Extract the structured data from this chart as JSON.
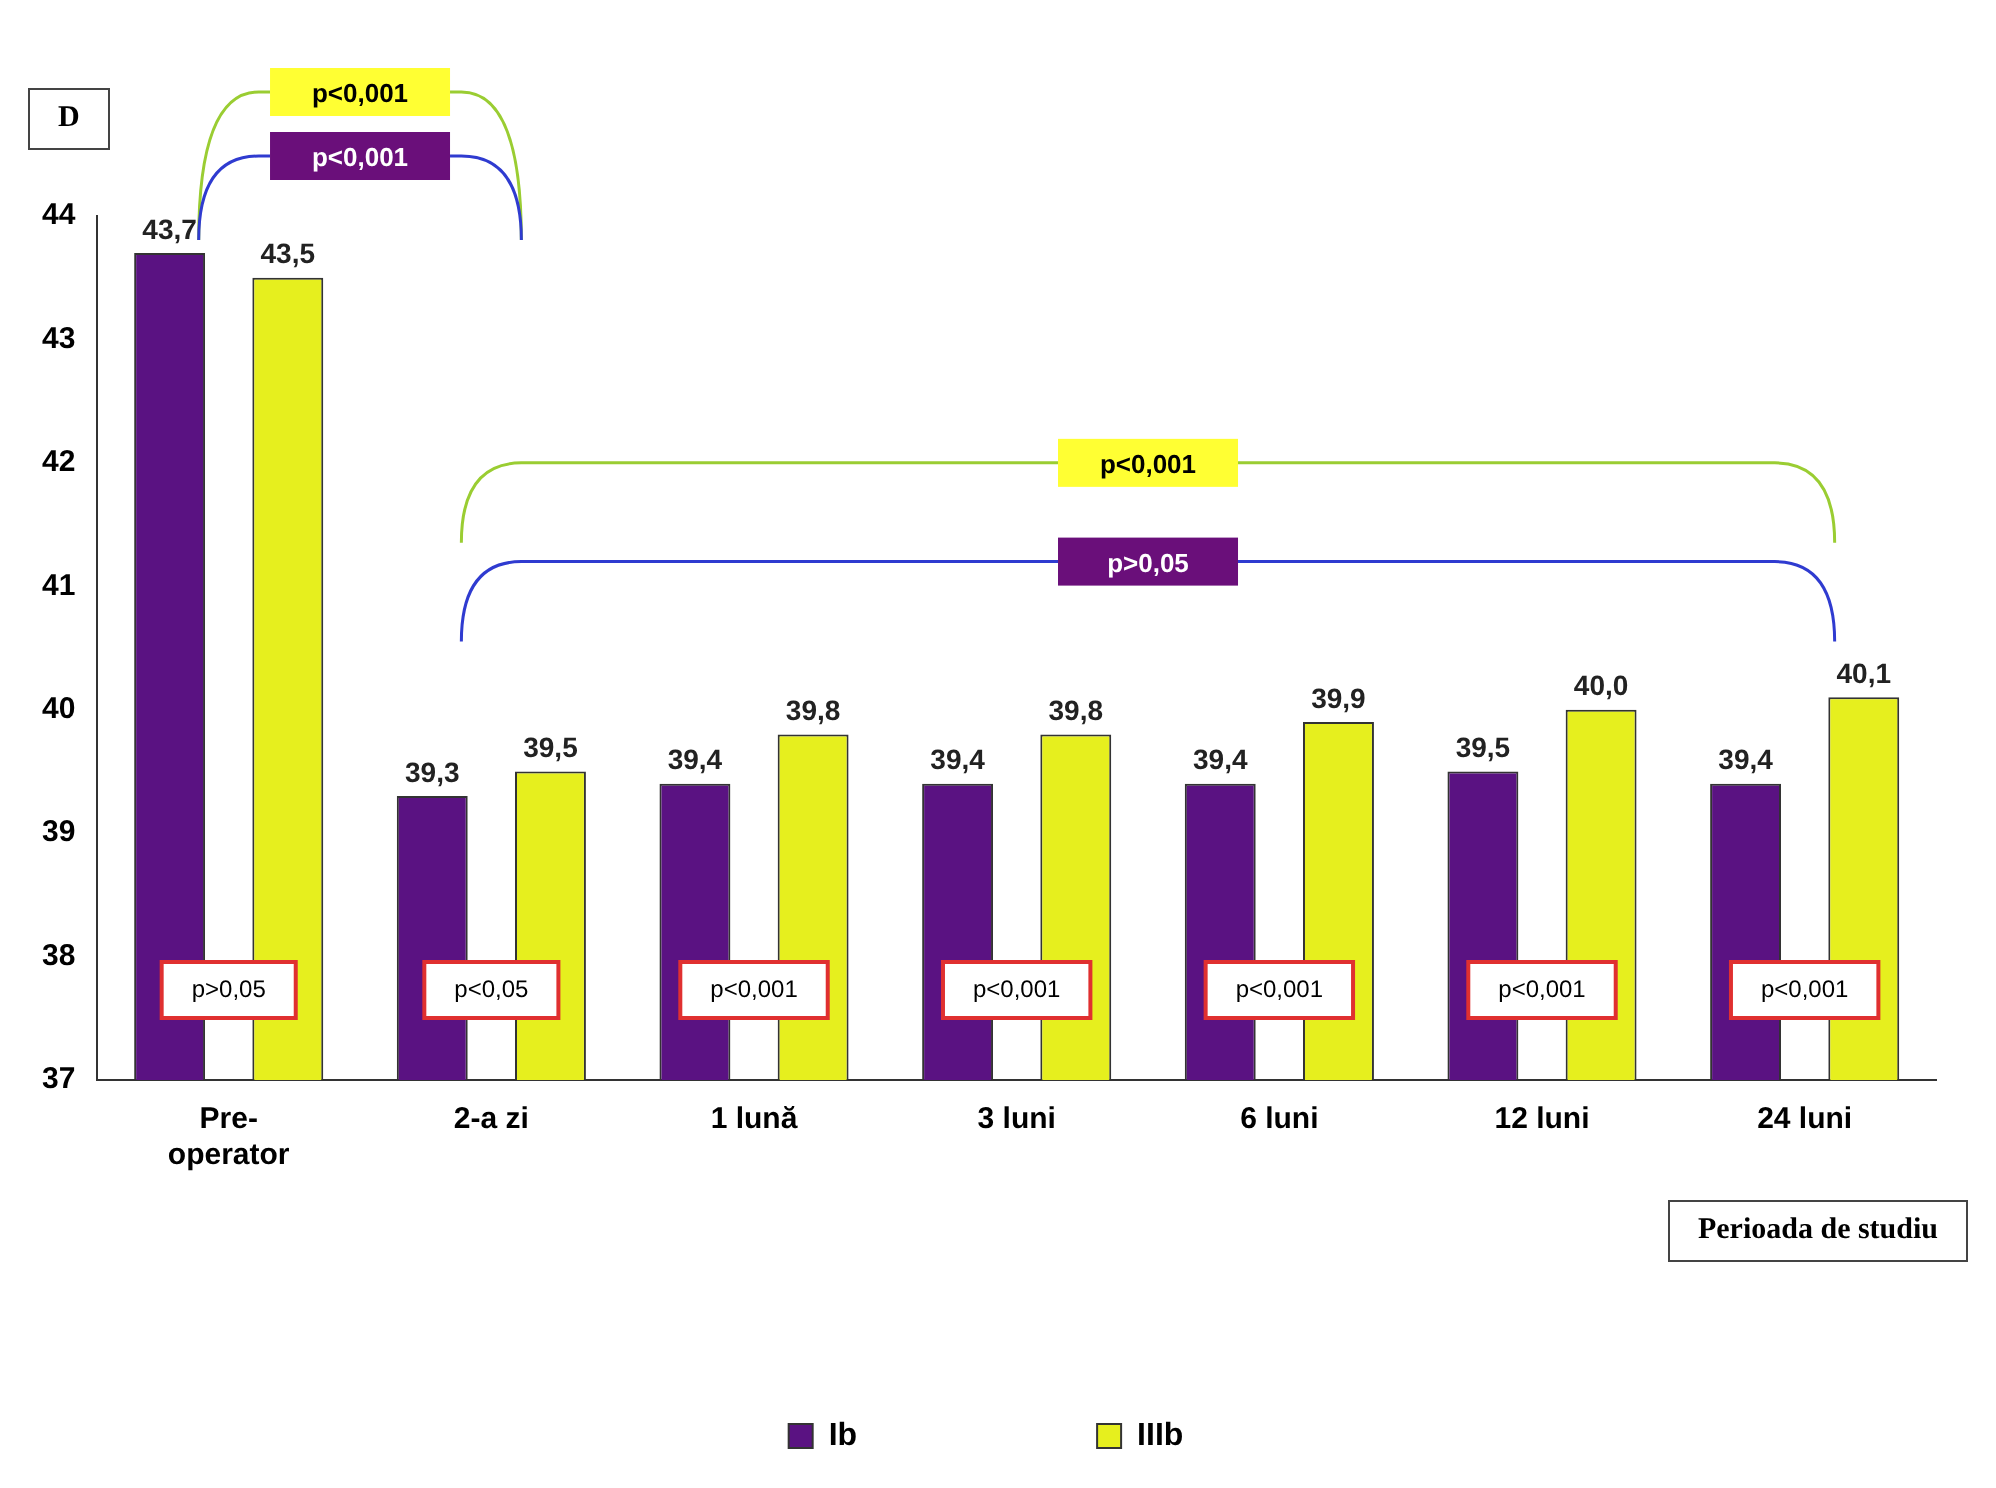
{
  "chart_data": {
    "type": "bar",
    "ylabel": "D",
    "xlabel": "Perioada de studiu",
    "categories": [
      "Pre-\noperator",
      "2-a zi",
      "1 lună",
      "3 luni",
      "6 luni",
      "12 luni",
      "24 luni"
    ],
    "series": [
      {
        "name": "Ib",
        "color": "#5a1282",
        "values": [
          43.7,
          39.3,
          39.4,
          39.4,
          39.4,
          39.5,
          39.4
        ],
        "value_labels": [
          "43,7",
          "39,3",
          "39,4",
          "39,4",
          "39,4",
          "39,5",
          "39,4"
        ]
      },
      {
        "name": "IIIb",
        "color": "#e6ef1e",
        "values": [
          43.5,
          39.5,
          39.8,
          39.8,
          39.9,
          40.0,
          40.1
        ],
        "value_labels": [
          "43,5",
          "39,5",
          "39,8",
          "39,8",
          "39,9",
          "40,0",
          "40,1"
        ]
      }
    ],
    "ylim": [
      37,
      44
    ],
    "yticks": [
      37,
      38,
      39,
      40,
      41,
      42,
      43,
      44
    ],
    "grid": false,
    "legend": "bottom",
    "annotations": [
      "p<0,001",
      "p<0,001",
      "p<0,001",
      "p>0,05",
      "p>0,05",
      "p<0,05",
      "p<0,001",
      "p<0,001",
      "p<0,001",
      "p<0,001",
      "p<0,001"
    ]
  }
}
